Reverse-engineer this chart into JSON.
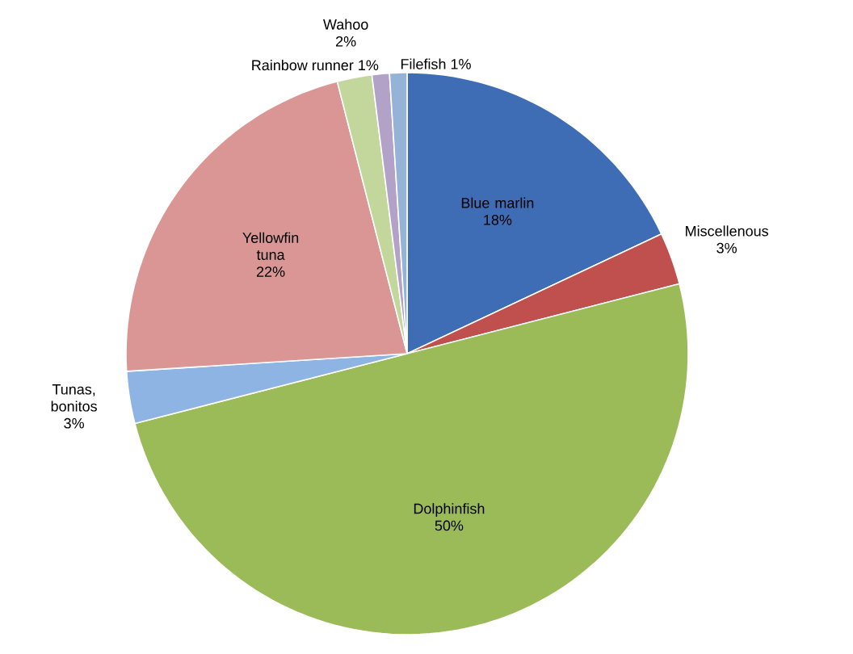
{
  "chart_data": {
    "type": "pie",
    "categories": [
      "Blue marlin",
      "Miscellenous",
      "Dolphinfish",
      "Tunas, bonitos",
      "Yellowfin tuna",
      "Wahoo",
      "Rainbow runner",
      "Filefish"
    ],
    "values": [
      18,
      3,
      50,
      3,
      22,
      2,
      1,
      1
    ],
    "value_labels": [
      "18%",
      "3%",
      "50%",
      "3%",
      "22%",
      "2%",
      "1%",
      "1%"
    ],
    "colors": [
      "#3e6db5",
      "#c0504d",
      "#9bbb59",
      "#8eb4e3",
      "#d99694",
      "#c3d69b",
      "#b3a2c7",
      "#95b3d7"
    ]
  }
}
